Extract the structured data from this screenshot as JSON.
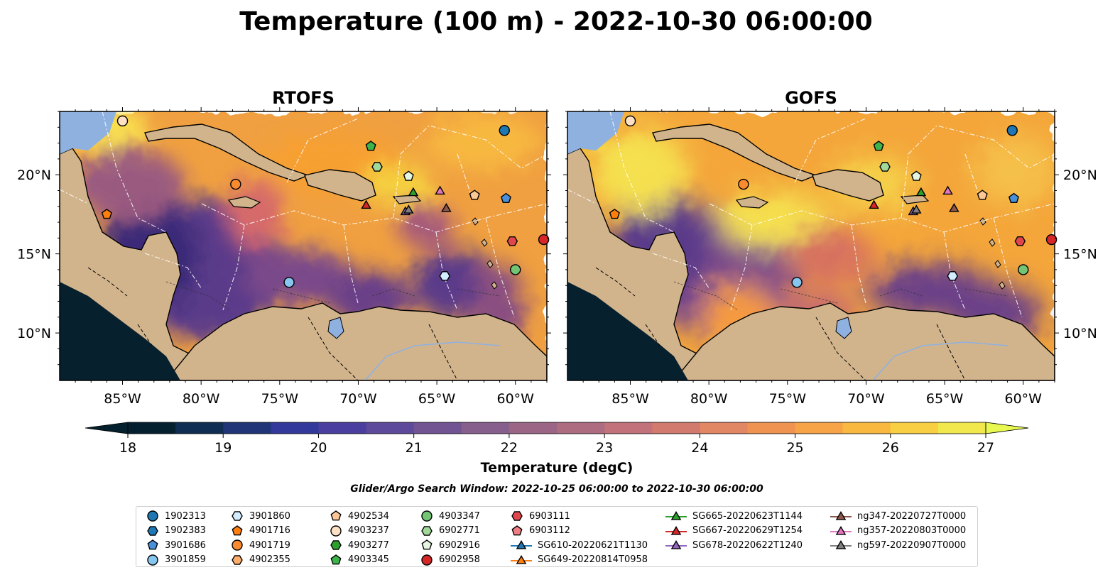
{
  "figure": {
    "title": "Temperature (100 m) - 2022-10-30 06:00:00",
    "subtitle": "Glider/Argo Search Window: 2022-10-25 06:00:00 to 2022-10-30 06:00:00"
  },
  "panels": [
    {
      "title": "RTOFS",
      "model": "rtofs"
    },
    {
      "title": "GOFS",
      "model": "gofs"
    }
  ],
  "map": {
    "lon_range": [
      -89,
      -58
    ],
    "lat_range": [
      7,
      24
    ],
    "lon_ticks": [
      "85°W",
      "80°W",
      "75°W",
      "70°W",
      "65°W",
      "60°W"
    ],
    "lon_tick_values": [
      -85,
      -80,
      -75,
      -70,
      -65,
      -60
    ],
    "lat_ticks": [
      "20°N",
      "15°N",
      "10°N"
    ],
    "lat_tick_values": [
      20,
      15,
      10
    ],
    "bathymetry_contours": [
      "1000",
      "3000",
      "5000"
    ],
    "colors": {
      "land": "#d2b48c",
      "shelf_water": "#8fb1e0",
      "deep_ocean": "#06202e",
      "coast": "#000000",
      "eez_lines": "#ffffff"
    }
  },
  "colorbar": {
    "label": "Temperature (degC)",
    "ticks": [
      "18",
      "19",
      "20",
      "21",
      "22",
      "23",
      "24",
      "25",
      "26",
      "27"
    ],
    "tick_values": [
      18,
      19,
      20,
      21,
      22,
      23,
      24,
      25,
      26,
      27
    ],
    "min": 18,
    "max": 27,
    "step": 0.5,
    "palette": "thermal",
    "extend": "both"
  },
  "legend": [
    {
      "name": "1902313",
      "marker": "circle",
      "color": "#1f77b4"
    },
    {
      "name": "1902383",
      "marker": "hexagon",
      "color": "#1f77b4"
    },
    {
      "name": "3901686",
      "marker": "pentagon",
      "color": "#4a90d9"
    },
    {
      "name": "3901859",
      "marker": "circle",
      "color": "#87c6ef"
    },
    {
      "name": "3901860",
      "marker": "hexagon",
      "color": "#d4ecff"
    },
    {
      "name": "4901716",
      "marker": "pentagon",
      "color": "#ff7f0e"
    },
    {
      "name": "4901719",
      "marker": "circle",
      "color": "#f88a30"
    },
    {
      "name": "4902355",
      "marker": "hexagon",
      "color": "#fdae6b"
    },
    {
      "name": "4902534",
      "marker": "pentagon",
      "color": "#fdc896"
    },
    {
      "name": "4903237",
      "marker": "circle",
      "color": "#fee1c4"
    },
    {
      "name": "4903277",
      "marker": "hexagon",
      "color": "#2ca02c"
    },
    {
      "name": "4903345",
      "marker": "pentagon",
      "color": "#3cb44b"
    },
    {
      "name": "4903347",
      "marker": "circle",
      "color": "#74c476"
    },
    {
      "name": "6902771",
      "marker": "hexagon",
      "color": "#a1d99b"
    },
    {
      "name": "6902916",
      "marker": "pentagon",
      "color": "#e5f5e0"
    },
    {
      "name": "6902958",
      "marker": "circle",
      "color": "#d62728"
    },
    {
      "name": "6903111",
      "marker": "hexagon",
      "color": "#e0474c"
    },
    {
      "name": "6903112",
      "marker": "pentagon",
      "color": "#f07e82"
    },
    {
      "name": "SG610-20220621T1130",
      "marker": "triangle",
      "color": "#1f77b4",
      "line": true
    },
    {
      "name": "SG649-20220814T0958",
      "marker": "triangle",
      "color": "#ff7f0e",
      "line": true
    },
    {
      "name": "SG665-20220623T1144",
      "marker": "triangle",
      "color": "#2ca02c",
      "line": true
    },
    {
      "name": "SG667-20220629T1254",
      "marker": "triangle",
      "color": "#d62728",
      "line": true
    },
    {
      "name": "SG678-20220622T1240",
      "marker": "triangle",
      "color": "#9467bd",
      "line": true
    },
    {
      "name": "ng347-20220727T0000",
      "marker": "triangle",
      "color": "#8c564b",
      "line": true
    },
    {
      "name": "ng357-20220803T0000",
      "marker": "triangle",
      "color": "#e377c2",
      "line": true
    },
    {
      "name": "ng597-20220907T0000",
      "marker": "triangle",
      "color": "#7f7f7f",
      "line": true
    }
  ],
  "observations": [
    {
      "id": "4903237",
      "lon": -85.0,
      "lat": 23.4
    },
    {
      "id": "1902313",
      "lon": -60.7,
      "lat": 22.8
    },
    {
      "id": "4903345",
      "lon": -69.2,
      "lat": 21.8
    },
    {
      "id": "6902771",
      "lon": -68.8,
      "lat": 20.5
    },
    {
      "id": "6902916",
      "lon": -66.8,
      "lat": 19.9
    },
    {
      "id": "4901719",
      "lon": -77.8,
      "lat": 19.4
    },
    {
      "id": "4902534",
      "lon": -62.6,
      "lat": 18.7
    },
    {
      "id": "3901686",
      "lon": -60.6,
      "lat": 18.5
    },
    {
      "id": "4901716",
      "lon": -86.0,
      "lat": 17.5
    },
    {
      "id": "6903111",
      "lon": -60.2,
      "lat": 15.8
    },
    {
      "id": "6902958",
      "lon": -58.2,
      "lat": 15.9
    },
    {
      "id": "4903347",
      "lon": -60.0,
      "lat": 14.0
    },
    {
      "id": "3901860",
      "lon": -64.5,
      "lat": 13.6
    },
    {
      "id": "3901859",
      "lon": -74.4,
      "lat": 13.2
    },
    {
      "id": "SG665-20220623T1144",
      "lon": -66.5,
      "lat": 18.9
    },
    {
      "id": "SG667-20220629T1254",
      "lon": -69.5,
      "lat": 18.1
    },
    {
      "id": "ng357-20220803T0000",
      "lon": -64.8,
      "lat": 19.0
    },
    {
      "id": "SG678-20220622T1240",
      "lon": -67.0,
      "lat": 17.7
    },
    {
      "id": "ng597-20220907T0000",
      "lon": -66.8,
      "lat": 17.8
    },
    {
      "id": "ng347-20220727T0000",
      "lon": -64.4,
      "lat": 17.9
    }
  ]
}
